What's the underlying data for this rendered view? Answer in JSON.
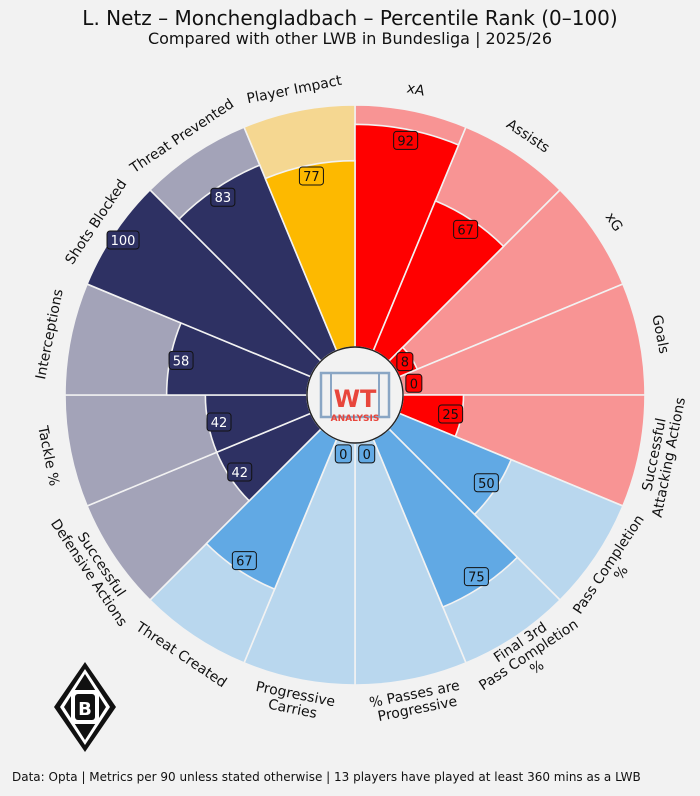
{
  "title": "L. Netz – Monchengladbach – Percentile Rank (0–100)",
  "subtitle": "Compared with other LWB in Bundesliga | 2025/26",
  "footnote": "Data: Opta | Metrics per 90 unless stated otherwise | 13 players have played at least 360 mins as a LWB",
  "center_logo": {
    "line1": "WT",
    "line2": "ANALYSIS"
  },
  "club_logo": {
    "letter": "B"
  },
  "colors": {
    "background": "#f2f2f2",
    "attacking": "#ff0000",
    "attacking_light": "#f89494",
    "possession": "#61a9e4",
    "possession_light": "#b9d7ee",
    "defending": "#2e3163",
    "defending_light": "#a3a3b8",
    "impact": "#fdb900",
    "impact_light": "#f5d791"
  },
  "chart_data": {
    "type": "polar-bar",
    "range": [
      0,
      100
    ],
    "categories": [
      "xA",
      "Assists",
      "xG",
      "Goals",
      "Successful\nAttacking Actions",
      "Pass Completion\n%",
      "Final 3rd\nPass Completion\n%",
      "% Passes are\nProgressive",
      "Progressive\nCarries",
      "Threat Created",
      "Successful\nDefensive Actions",
      "Tackle %",
      "Interceptions",
      "Shots Blocked",
      "Threat Prevented",
      "Player Impact"
    ],
    "values": [
      92,
      67,
      8,
      0,
      25,
      50,
      75,
      0,
      0,
      67,
      42,
      42,
      58,
      100,
      83,
      77
    ],
    "groups": [
      "attacking",
      "attacking",
      "attacking",
      "attacking",
      "attacking",
      "possession",
      "possession",
      "possession",
      "possession",
      "possession",
      "defending",
      "defending",
      "defending",
      "defending",
      "defending",
      "impact"
    ]
  }
}
